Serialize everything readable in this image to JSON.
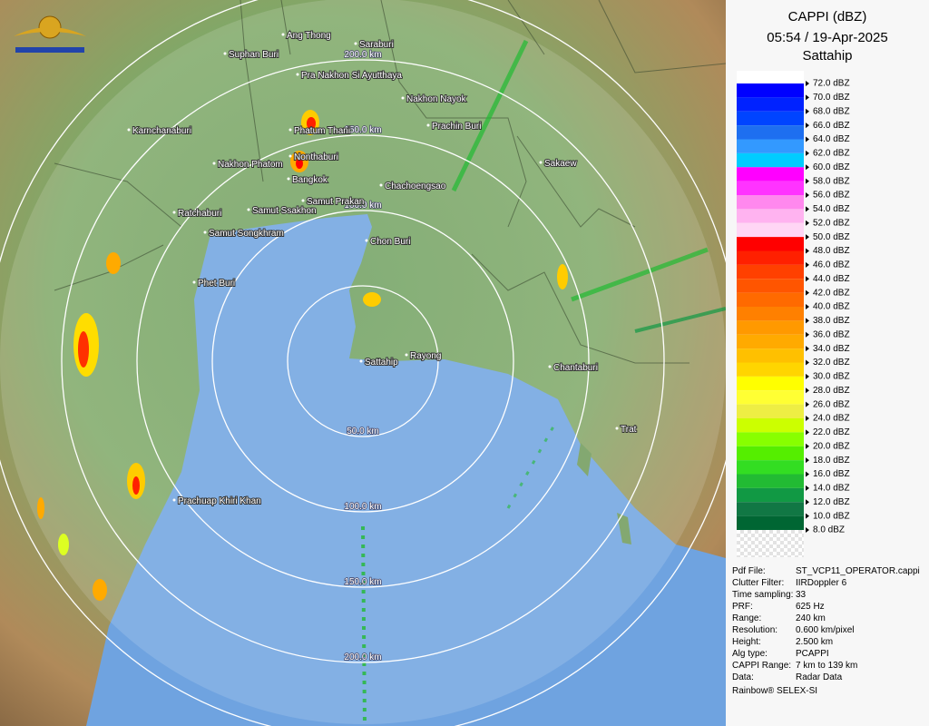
{
  "header": {
    "title": "CAPPI (dBZ)",
    "datetime": "05:54 / 19-Apr-2025",
    "station": "Sattahip"
  },
  "legend": [
    {
      "label": "72.0 dBZ",
      "color": "#0000ff"
    },
    {
      "label": "70.0 dBZ",
      "color": "#0022ff"
    },
    {
      "label": "68.0 dBZ",
      "color": "#0044ff"
    },
    {
      "label": "66.0 dBZ",
      "color": "#1e6ff0"
    },
    {
      "label": "64.0 dBZ",
      "color": "#3399ff"
    },
    {
      "label": "62.0 dBZ",
      "color": "#00ccff"
    },
    {
      "label": "60.0 dBZ",
      "color": "#ff00ff"
    },
    {
      "label": "58.0 dBZ",
      "color": "#ff33ff"
    },
    {
      "label": "56.0 dBZ",
      "color": "#ff88ee"
    },
    {
      "label": "54.0 dBZ",
      "color": "#ffb3f0"
    },
    {
      "label": "52.0 dBZ",
      "color": "#ffd6f5"
    },
    {
      "label": "50.0 dBZ",
      "color": "#ff0000"
    },
    {
      "label": "48.0 dBZ",
      "color": "#ff2000"
    },
    {
      "label": "46.0 dBZ",
      "color": "#ff4000"
    },
    {
      "label": "44.0 dBZ",
      "color": "#ff5500"
    },
    {
      "label": "42.0 dBZ",
      "color": "#ff6a00"
    },
    {
      "label": "40.0 dBZ",
      "color": "#ff8000"
    },
    {
      "label": "38.0 dBZ",
      "color": "#ff9900"
    },
    {
      "label": "36.0 dBZ",
      "color": "#ffaa00"
    },
    {
      "label": "34.0 dBZ",
      "color": "#ffc000"
    },
    {
      "label": "32.0 dBZ",
      "color": "#ffd500"
    },
    {
      "label": "30.0 dBZ",
      "color": "#ffff00"
    },
    {
      "label": "28.0 dBZ",
      "color": "#ffff33"
    },
    {
      "label": "26.0 dBZ",
      "color": "#eeee44"
    },
    {
      "label": "24.0 dBZ",
      "color": "#ccff00"
    },
    {
      "label": "22.0 dBZ",
      "color": "#88ff00"
    },
    {
      "label": "20.0 dBZ",
      "color": "#55ee00"
    },
    {
      "label": "18.0 dBZ",
      "color": "#33dd22"
    },
    {
      "label": "16.0 dBZ",
      "color": "#22bb33"
    },
    {
      "label": "14.0 dBZ",
      "color": "#119944"
    },
    {
      "label": "12.0 dBZ",
      "color": "#117744"
    },
    {
      "label": "10.0 dBZ",
      "color": "#006633"
    },
    {
      "label": "8.0 dBZ",
      "color": "#e6e6e6"
    }
  ],
  "rings": [
    {
      "label": "50.0 km"
    },
    {
      "label": "100.0 km"
    },
    {
      "label": "150.0 km"
    },
    {
      "label": "200.0 km"
    }
  ],
  "places": [
    {
      "name": "Ang Thong"
    },
    {
      "name": "Saraburi"
    },
    {
      "name": "Suphan Buri"
    },
    {
      "name": "Pra Nakhon Si Ayutthaya"
    },
    {
      "name": "Nakhon Nayok"
    },
    {
      "name": "Prachin Buri"
    },
    {
      "name": "Karnchanaburi"
    },
    {
      "name": "Phatum Thani"
    },
    {
      "name": "Nonthaburi"
    },
    {
      "name": "Nakhon Phatom"
    },
    {
      "name": "Bangkok"
    },
    {
      "name": "Sakaew"
    },
    {
      "name": "Chachoengsao"
    },
    {
      "name": "Samut Prakan"
    },
    {
      "name": "Ratchaburi"
    },
    {
      "name": "Samut Ssakhon"
    },
    {
      "name": "Samut Songkhram"
    },
    {
      "name": "Chon Buri"
    },
    {
      "name": "Phet Buri"
    },
    {
      "name": "Sattahip"
    },
    {
      "name": "Rayong"
    },
    {
      "name": "Chantaburi"
    },
    {
      "name": "Trat"
    },
    {
      "name": "Prachuap Khiri Khan"
    }
  ],
  "info": [
    {
      "key": "Pdf File:",
      "value": "ST_VCP11_OPERATOR.cappi"
    },
    {
      "key": "Clutter Filter:",
      "value": "IIRDoppler 6"
    },
    {
      "key": "Time sampling:",
      "value": "33"
    },
    {
      "key": "PRF:",
      "value": "625 Hz"
    },
    {
      "key": "Range:",
      "value": "240 km"
    },
    {
      "key": "Resolution:",
      "value": "0.600 km/pixel"
    },
    {
      "key": "Height:",
      "value": "2.500 km"
    },
    {
      "key": "Alg type:",
      "value": "PCAPPI"
    },
    {
      "key": "CAPPI Range:",
      "value": "7 km to 139 km"
    },
    {
      "key": "Data:",
      "value": "Radar Data"
    }
  ],
  "footer": "Rainbow® SELEX-SI"
}
